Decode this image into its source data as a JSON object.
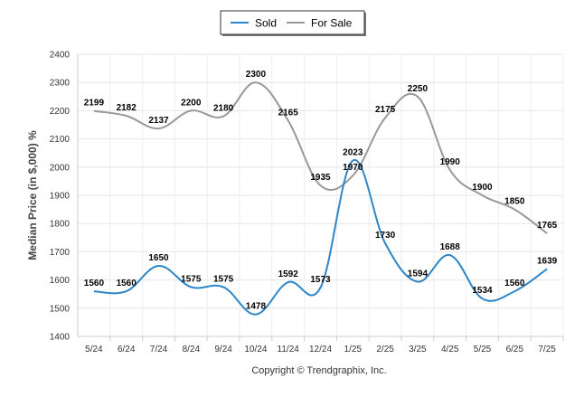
{
  "chart_data": {
    "type": "line",
    "categories": [
      "5/24",
      "6/24",
      "7/24",
      "8/24",
      "9/24",
      "10/24",
      "11/24",
      "12/24",
      "1/25",
      "2/25",
      "3/25",
      "4/25",
      "5/25",
      "6/25",
      "7/25"
    ],
    "series": [
      {
        "name": "Sold",
        "color": "#2e86c8",
        "values": [
          1560,
          1560,
          1650,
          1575,
          1575,
          1478,
          1592,
          1573,
          2023,
          1730,
          1594,
          1688,
          1534,
          1560,
          1639
        ]
      },
      {
        "name": "For Sale",
        "color": "#999999",
        "values": [
          2199,
          2182,
          2137,
          2200,
          2180,
          2300,
          2165,
          1935,
          1970,
          2175,
          2250,
          1990,
          1900,
          1850,
          1765
        ]
      }
    ],
    "ylabel": "Median Price (in $,000) %",
    "xlabel": "",
    "ylim": [
      1400,
      2400
    ],
    "yticks": [
      1400,
      1500,
      1600,
      1700,
      1800,
      1900,
      2000,
      2100,
      2200,
      2300,
      2400
    ],
    "grid": true,
    "legend_position": "top-center"
  },
  "footer": {
    "copyright": "Copyright © Trendgraphix, Inc."
  }
}
